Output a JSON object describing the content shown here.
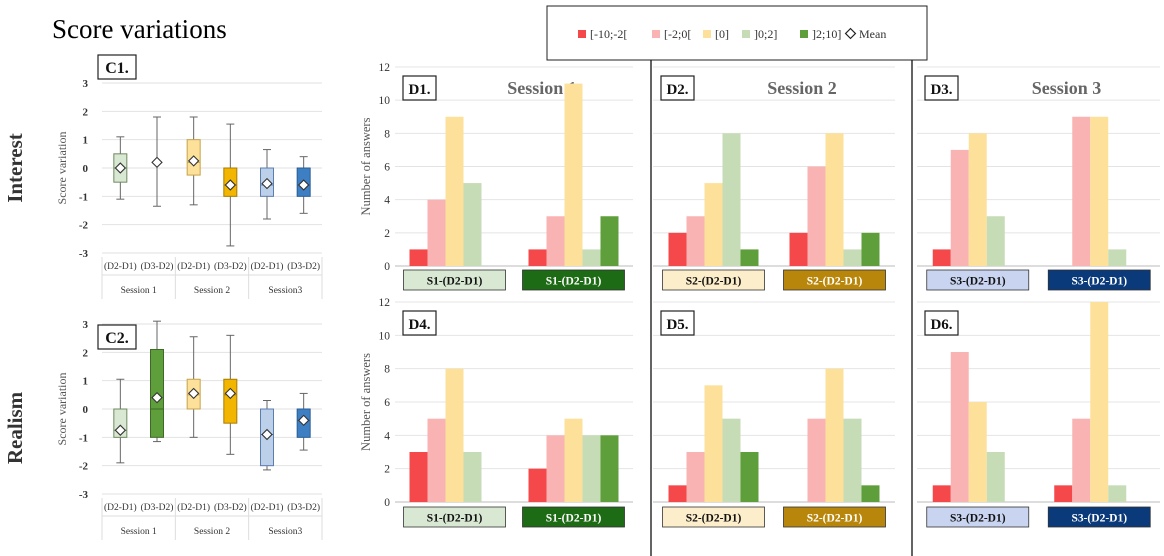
{
  "figure": {
    "title": "Score variations",
    "row_labels": [
      "Interest",
      "Realism"
    ]
  },
  "colors": {
    "neg_strong": "#f4484b",
    "neg_weak": "#f9b3b3",
    "zero": "#fde19a",
    "pos_weak": "#c5dcb7",
    "pos_strong": "#5e9e3b",
    "s1_light": "#d8e8d2",
    "s1_dark": "#1e6b16",
    "s2_light": "#fdeecb",
    "s2_dark": "#b8860b",
    "s3_light": "#c8d4f0",
    "s3_dark": "#0b3a7a",
    "box_s1": "#d9e8d2",
    "box_s1b": "#5e9e3b",
    "box_s2": "#fde19a",
    "box_s2b": "#f2b500",
    "box_s3": "#bcd0ea",
    "box_s3b": "#3e7fc4"
  },
  "chart_data": [
    {
      "id": "C1",
      "type": "box",
      "panel_label": "C1.",
      "row": "Interest",
      "ylabel": "Score variation",
      "ylim": [
        -3,
        3
      ],
      "yticks": [
        "-3",
        "-2",
        "-1",
        "0",
        "1",
        "2",
        "3"
      ],
      "categories": [
        "(D2-D1)",
        "(D3-D2)",
        "(D2-D1)",
        "(D3-D2)",
        "(D2-D1)",
        "(D3-D2)"
      ],
      "groups": [
        "Session 1",
        "Session 2",
        "Session3"
      ],
      "boxes": [
        {
          "min": -1.1,
          "q1": -0.5,
          "median": 0,
          "q3": 0.5,
          "max": 1.1,
          "mean": 0,
          "style": "s1"
        },
        {
          "min": -1.35,
          "q1": 0.2,
          "median": 0.2,
          "q3": 0.2,
          "max": 1.8,
          "mean": 0.2,
          "style": "s1b"
        },
        {
          "min": -1.3,
          "q1": -0.25,
          "median": 0.2,
          "q3": 1.0,
          "max": 1.8,
          "mean": 0.25,
          "style": "s2"
        },
        {
          "min": -2.75,
          "q1": -1.0,
          "median": -0.6,
          "q3": 0,
          "max": 1.55,
          "mean": -0.6,
          "style": "s2b"
        },
        {
          "min": -1.8,
          "q1": -1.0,
          "median": -0.6,
          "q3": 0,
          "max": 0.65,
          "mean": -0.55,
          "style": "s3"
        },
        {
          "min": -1.6,
          "q1": -1.0,
          "median": -0.6,
          "q3": 0,
          "max": 0.4,
          "mean": -0.6,
          "style": "s3b"
        }
      ]
    },
    {
      "id": "C2",
      "type": "box",
      "panel_label": "C2.",
      "row": "Realism",
      "ylabel": "Score variation",
      "ylim": [
        -3,
        3
      ],
      "yticks": [
        "-3",
        "-2",
        "-1",
        "0",
        "1",
        "2",
        "3"
      ],
      "categories": [
        "(D2-D1)",
        "(D3-D2)",
        "(D2-D1)",
        "(D3-D2)",
        "(D2-D1)",
        "(D3-D2)"
      ],
      "groups": [
        "Session 1",
        "Session 2",
        "Session3"
      ],
      "boxes": [
        {
          "min": -1.9,
          "q1": -1.0,
          "median": -0.75,
          "q3": 0,
          "max": 1.05,
          "mean": -0.75,
          "style": "s1"
        },
        {
          "min": -1.15,
          "q1": -1.0,
          "median": 0,
          "q3": 2.1,
          "max": 3.1,
          "mean": 0.4,
          "style": "s1b"
        },
        {
          "min": -1.0,
          "q1": 0,
          "median": 0.5,
          "q3": 1.05,
          "max": 2.55,
          "mean": 0.55,
          "style": "s2"
        },
        {
          "min": -1.6,
          "q1": -0.5,
          "median": 0.5,
          "q3": 1.05,
          "max": 2.6,
          "mean": 0.55,
          "style": "s2b"
        },
        {
          "min": -2.15,
          "q1": -2.0,
          "median": -0.9,
          "q3": 0,
          "max": 0.3,
          "mean": -0.9,
          "style": "s3"
        },
        {
          "min": -1.45,
          "q1": -1.0,
          "median": -0.4,
          "q3": 0,
          "max": 0.55,
          "mean": -0.4,
          "style": "s3b"
        }
      ]
    },
    {
      "id": "D",
      "type": "bar",
      "ylabel": "Number of answers",
      "ylim": [
        0,
        12
      ],
      "yticks": [
        "0",
        "2",
        "4",
        "6",
        "8",
        "10",
        "12"
      ],
      "legend": [
        "[-10;-2[",
        "[-2;0[",
        "[0]",
        "]0;2]",
        "]2;10]",
        "Mean"
      ],
      "legend_placement": "top",
      "session_titles": [
        "Session 1",
        "Session 2",
        "Session 3"
      ],
      "panels": [
        {
          "label": "D1.",
          "session": 1,
          "groups": [
            {
              "label": "S1-(D2-D1)",
              "values": [
                1,
                4,
                9,
                5,
                0
              ],
              "style": "s1_light"
            },
            {
              "label": "S1-(D2-D1)",
              "values": [
                1,
                3,
                11,
                1,
                3
              ],
              "style": "s1_dark"
            }
          ]
        },
        {
          "label": "D2.",
          "session": 2,
          "groups": [
            {
              "label": "S2-(D2-D1)",
              "values": [
                2,
                3,
                5,
                8,
                1
              ],
              "style": "s2_light"
            },
            {
              "label": "S2-(D2-D1)",
              "values": [
                2,
                6,
                8,
                1,
                2
              ],
              "style": "s2_dark"
            }
          ]
        },
        {
          "label": "D3.",
          "session": 3,
          "groups": [
            {
              "label": "S3-(D2-D1)",
              "values": [
                1,
                7,
                8,
                3,
                0
              ],
              "style": "s3_light"
            },
            {
              "label": "S3-(D2-D1)",
              "values": [
                0,
                9,
                9,
                1,
                0
              ],
              "style": "s3_dark"
            }
          ]
        },
        {
          "label": "D4.",
          "session": 1,
          "groups": [
            {
              "label": "S1-(D2-D1)",
              "values": [
                3,
                5,
                8,
                3,
                0
              ],
              "style": "s1_light"
            },
            {
              "label": "S1-(D2-D1)",
              "values": [
                2,
                4,
                5,
                4,
                4
              ],
              "style": "s1_dark"
            }
          ]
        },
        {
          "label": "D5.",
          "session": 2,
          "groups": [
            {
              "label": "S2-(D2-D1)",
              "values": [
                1,
                3,
                7,
                5,
                3
              ],
              "style": "s2_light"
            },
            {
              "label": "S2-(D2-D1)",
              "values": [
                0,
                5,
                8,
                5,
                1
              ],
              "style": "s2_dark"
            }
          ]
        },
        {
          "label": "D6.",
          "session": 3,
          "groups": [
            {
              "label": "S3-(D2-D1)",
              "values": [
                1,
                9,
                6,
                3,
                0
              ],
              "style": "s3_light"
            },
            {
              "label": "S3-(D2-D1)",
              "values": [
                1,
                5,
                12,
                1,
                0
              ],
              "style": "s3_dark"
            }
          ]
        }
      ]
    }
  ]
}
